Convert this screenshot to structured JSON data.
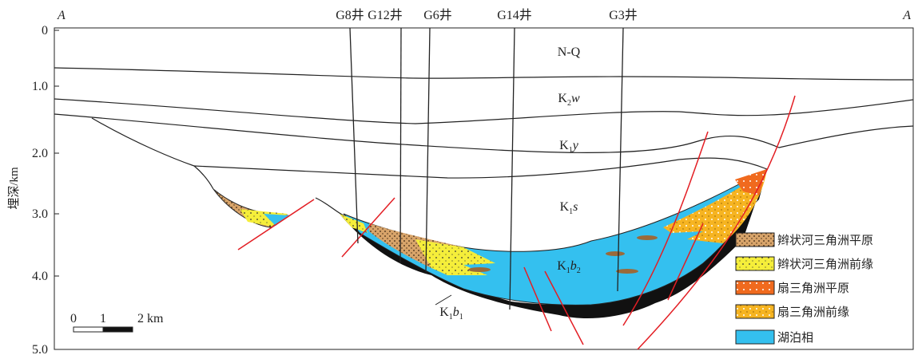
{
  "section": {
    "ends": [
      "A",
      "A"
    ],
    "axis": {
      "label": "埋深/km",
      "ticks": [
        "0",
        "1.0",
        "2.0",
        "3.0",
        "4.0",
        "5.0"
      ]
    },
    "wells": [
      "G8井",
      "G12井",
      "G6井",
      "G14井",
      "G3井"
    ],
    "layers": [
      {
        "base": "N-Q"
      },
      {
        "base": "K",
        "sub": "2",
        "rest": "w"
      },
      {
        "base": "K",
        "sub": "1",
        "rest": "y"
      },
      {
        "base": "K",
        "sub": "1",
        "rest": "s"
      },
      {
        "base": "K",
        "sub": "1",
        "rest": "b",
        "sub2": "2"
      },
      {
        "base": "K",
        "sub": "1",
        "rest": "b",
        "sub2": "1"
      }
    ],
    "scale": [
      "0",
      "1",
      "2 km"
    ]
  },
  "legend": [
    "辫状河三角洲平原",
    "辫状河三角洲前缘",
    "扇三角洲平原",
    "扇三角洲前缘",
    "湖泊相"
  ]
}
